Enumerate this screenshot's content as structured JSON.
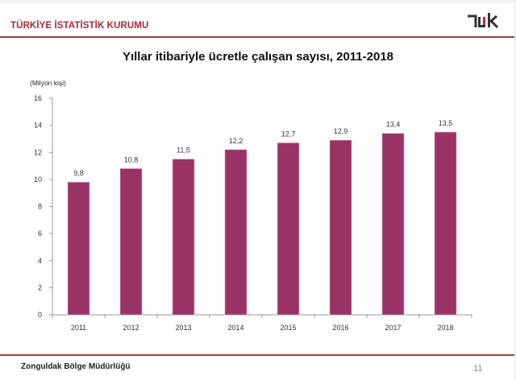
{
  "header": {
    "organization": "TÜRKİYE İSTATİSTİK KURUMU",
    "logo_text": "TÜİK",
    "logo_icon": "tuik-logo-icon"
  },
  "footer": {
    "office": "Zonguldak Bölge Müdürlüğü",
    "page_number": "11"
  },
  "colors": {
    "accent": "#a33a44",
    "bar": "#993366",
    "bar_edge": "#e8a3c8"
  },
  "chart_data": {
    "type": "bar",
    "title": "Yıllar itibariyle ücretle çalışan sayısı, 2011-2018",
    "unit_label": "(Milyon kişi)",
    "xlabel": "",
    "ylabel": "(Milyon kişi)",
    "categories": [
      "2011",
      "2012",
      "2013",
      "2014",
      "2015",
      "2016",
      "2017",
      "2018"
    ],
    "values": [
      9.8,
      10.8,
      11.5,
      12.2,
      12.7,
      12.9,
      13.4,
      13.5
    ],
    "value_labels": [
      "9,8",
      "10,8",
      "11,5",
      "12,2",
      "12,7",
      "12,9",
      "13,4",
      "13,5"
    ],
    "ylim": [
      0,
      16
    ],
    "yticks": [
      0,
      2,
      4,
      6,
      8,
      10,
      12,
      14,
      16
    ],
    "grid": false,
    "legend": "none"
  }
}
